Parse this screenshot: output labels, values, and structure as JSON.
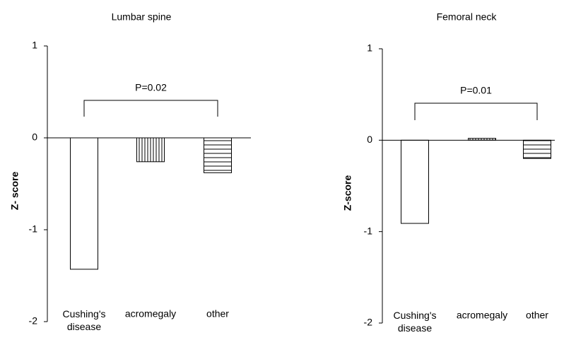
{
  "chart_data": [
    {
      "type": "bar",
      "title": "Lumbar spine",
      "ylabel": "Z- score",
      "categories": [
        "Cushing's\ndisease",
        "acromegaly",
        "other"
      ],
      "values": [
        -1.43,
        -0.26,
        -0.38
      ],
      "patterns": [
        "none",
        "vertical",
        "horizontal"
      ],
      "color": "#000000",
      "ylim": [
        -2,
        1
      ],
      "yticks": [
        1,
        0,
        -1,
        -2
      ],
      "annotation": "P=0.02",
      "bracket": [
        0,
        2
      ]
    },
    {
      "type": "bar",
      "title": "Femoral neck",
      "ylabel": "Z-score",
      "categories": [
        "Cushing's\ndisease",
        "acromegaly",
        "other"
      ],
      "values": [
        -0.91,
        0.02,
        -0.2
      ],
      "patterns": [
        "none",
        "vertical",
        "horizontal"
      ],
      "color": "#000000",
      "ylim": [
        -2,
        1
      ],
      "yticks": [
        1,
        0,
        -1,
        -2
      ],
      "annotation": "P=0.01",
      "bracket": [
        0,
        2
      ]
    }
  ]
}
